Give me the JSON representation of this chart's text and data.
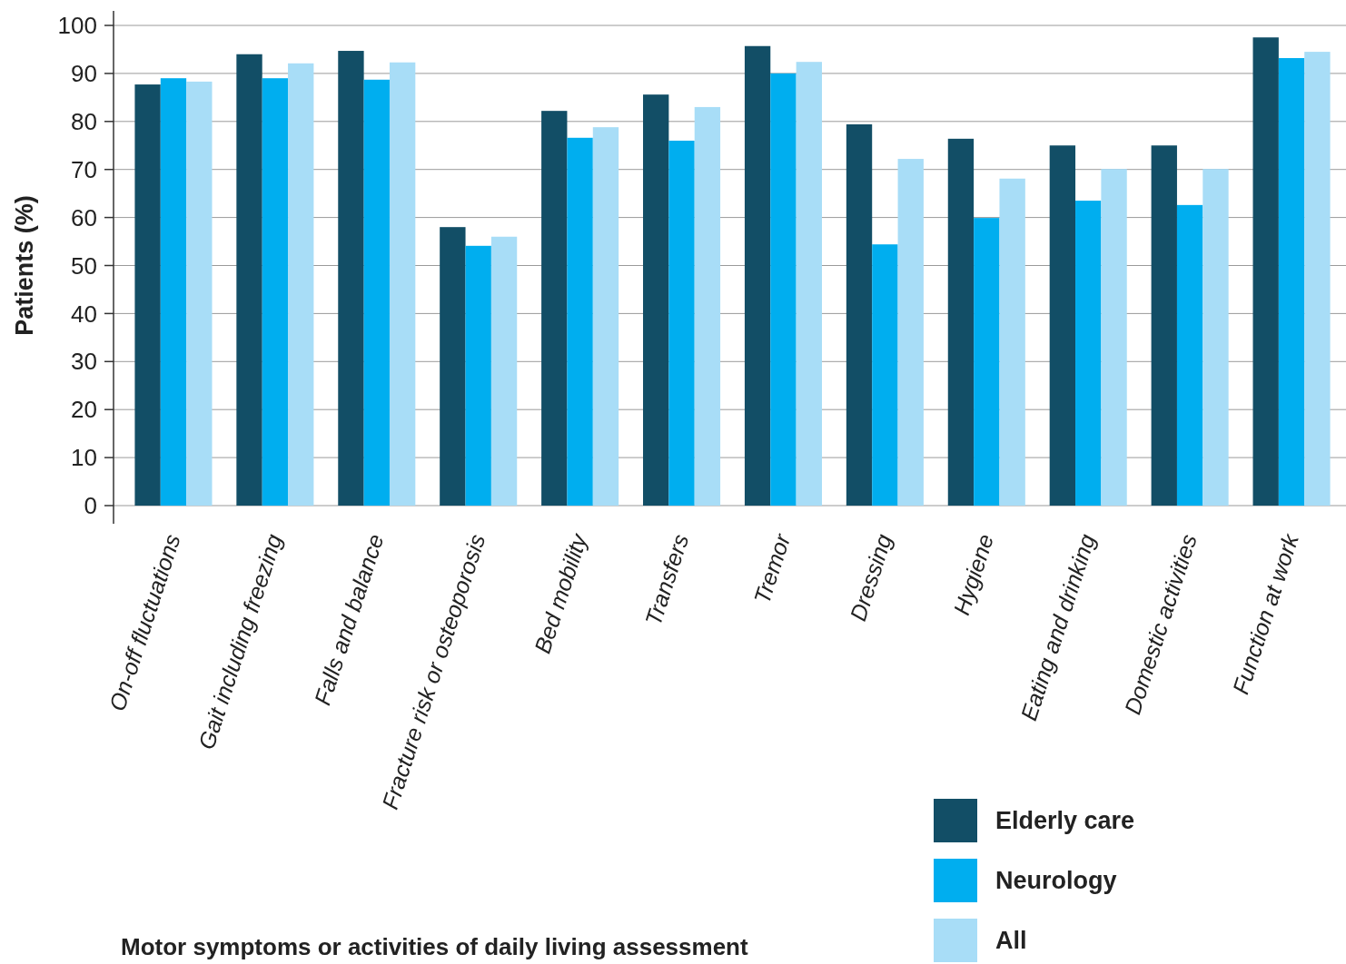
{
  "chart_data": {
    "type": "bar",
    "annotations": [
      "Motor symptoms or activities of daily living assessment"
    ],
    "ylabel": "Patients (%)",
    "categories": [
      "On-off fluctuations",
      "Gait including freezing",
      "Falls and balance",
      "Fracture risk or osteoporosis",
      "Bed mobility",
      "Transfers",
      "Tremor",
      "Dressing",
      "Hygiene",
      "Eating and drinking",
      "Domestic activities",
      "Function at work"
    ],
    "series": [
      {
        "name": "Elderly care",
        "color": "#124e66",
        "values": [
          87.7,
          94,
          94.7,
          58,
          82.2,
          85.6,
          95.7,
          79.4,
          76.4,
          75,
          75,
          97.5
        ]
      },
      {
        "name": "Neurology",
        "color": "#00aeef",
        "values": [
          89,
          89,
          88.7,
          54.1,
          76.6,
          76,
          90,
          54.4,
          59.9,
          63.5,
          62.6,
          93.2
        ]
      },
      {
        "name": "All",
        "color": "#a8ddf7",
        "values": [
          88.3,
          92.1,
          92.3,
          56,
          78.8,
          83,
          92.4,
          72.2,
          68.1,
          70.1,
          70.1,
          94.5
        ]
      }
    ],
    "ylim": [
      0,
      100
    ],
    "yticks": [
      0,
      10,
      20,
      30,
      40,
      50,
      60,
      70,
      80,
      90,
      100
    ],
    "grid": "y",
    "legend": "bottom right"
  }
}
